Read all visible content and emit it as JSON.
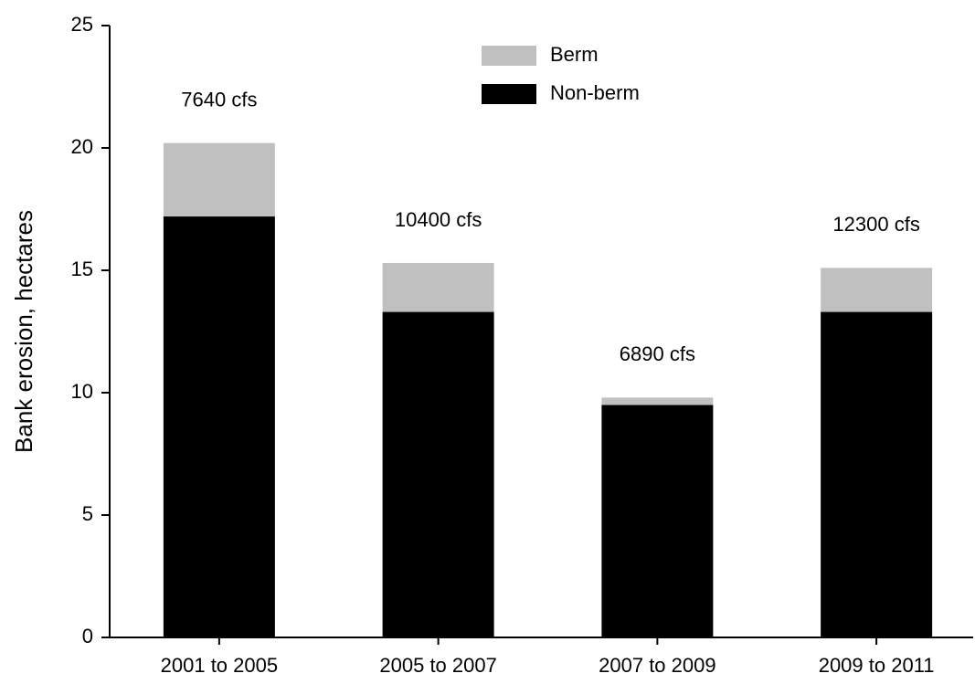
{
  "chart_data": {
    "type": "stacked-bar",
    "y_label": "Bank erosion, hectares",
    "categories": [
      "2001 to 2005",
      "2005 to 2007",
      "2007 to 2009",
      "2009 to 2011"
    ],
    "annotations": [
      "7640 cfs",
      "10400 cfs",
      "6890 cfs",
      "12300 cfs"
    ],
    "series": [
      {
        "name": "Non-berm",
        "color": "#000000",
        "values": [
          17.2,
          13.3,
          9.5,
          13.3
        ]
      },
      {
        "name": "Berm",
        "color": "#c0c0c0",
        "values": [
          3.0,
          2.0,
          0.3,
          1.8
        ]
      }
    ],
    "ylim": [
      0,
      25
    ],
    "yticks": [
      0,
      5,
      10,
      15,
      20,
      25
    ]
  }
}
